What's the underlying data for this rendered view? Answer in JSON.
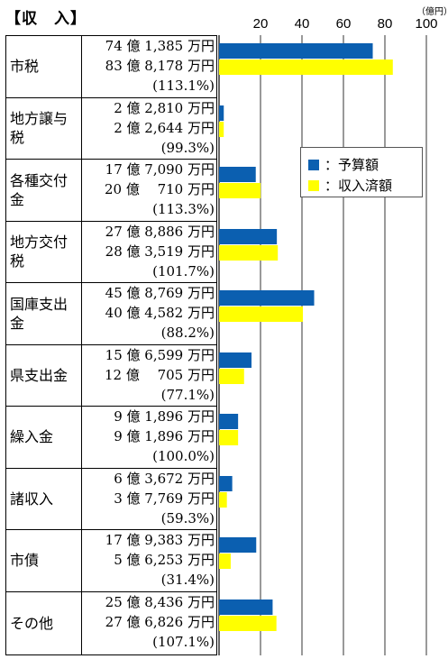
{
  "header": {
    "title": "【収　入】",
    "unit": "（億円）"
  },
  "legend": {
    "budget_label": "：予算額",
    "actual_label": "：収入済額"
  },
  "colors": {
    "budget": "#0b5fb0",
    "actual": "#ffff00",
    "grid": "#000000"
  },
  "chart_data": {
    "type": "bar",
    "orientation": "horizontal",
    "xlim": [
      0,
      100
    ],
    "ticks": [
      "20",
      "40",
      "60",
      "80",
      "100"
    ],
    "grid": true,
    "legend_position": "right-upper",
    "categories": [
      "市税",
      "地方譲与税",
      "各種交付金",
      "地方交付税",
      "国庫支出金",
      "県支出金",
      "繰入金",
      "諸収入",
      "市債",
      "その他"
    ],
    "series": [
      {
        "name": "予算額",
        "values": [
          74.1385,
          2.281,
          17.709,
          27.8886,
          45.8769,
          15.6599,
          9.1896,
          6.3672,
          17.9383,
          25.8436
        ]
      },
      {
        "name": "収入済額",
        "values": [
          83.8178,
          2.2644,
          20.071,
          28.3519,
          40.4582,
          12.0705,
          9.1896,
          3.7769,
          5.6253,
          27.6826
        ]
      }
    ],
    "labels": [
      {
        "budget": "74 億 1,385 万円",
        "actual": "83 億 8,178 万円",
        "rate": "(113.1%)"
      },
      {
        "budget": "2 億 2,810 万円",
        "actual": "2 億 2,644 万円",
        "rate": "(99.3%)"
      },
      {
        "budget": "17 億 7,090 万円",
        "actual": "20 億　 710 万円",
        "rate": "(113.3%)"
      },
      {
        "budget": "27 億 8,886 万円",
        "actual": "28 億 3,519 万円",
        "rate": "(101.7%)"
      },
      {
        "budget": "45 億 8,769 万円",
        "actual": "40 億 4,582 万円",
        "rate": "(88.2%)"
      },
      {
        "budget": "15 億 6,599 万円",
        "actual": "12 億　 705 万円",
        "rate": "(77.1%)"
      },
      {
        "budget": "9 億 1,896 万円",
        "actual": "9 億 1,896 万円",
        "rate": "(100.0%)"
      },
      {
        "budget": "6 億 3,672 万円",
        "actual": "3 億 7,769 万円",
        "rate": "(59.3%)"
      },
      {
        "budget": "17 億 9,383 万円",
        "actual": "5 億 6,253 万円",
        "rate": "(31.4%)"
      },
      {
        "budget": "25 億 8,436 万円",
        "actual": "27 億 6,826 万円",
        "rate": "(107.1%)"
      }
    ]
  }
}
